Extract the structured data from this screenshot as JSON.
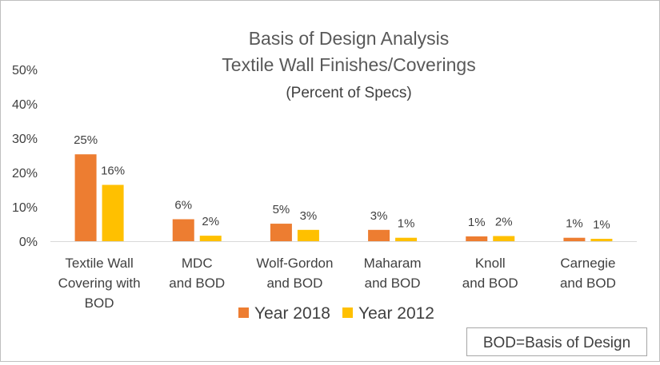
{
  "chart_data": {
    "type": "bar",
    "title": [
      "Basis of Design Analysis",
      "Textile Wall Finishes/Coverings"
    ],
    "subtitle": "(Percent of Specs)",
    "categories": [
      [
        "Textile Wall",
        "Covering with",
        "BOD"
      ],
      [
        "MDC",
        "and BOD"
      ],
      [
        "Wolf-Gordon",
        "and BOD"
      ],
      [
        "Maharam",
        "and BOD"
      ],
      [
        "Knoll",
        "and BOD"
      ],
      [
        "Carnegie",
        "and BOD"
      ]
    ],
    "series": [
      {
        "name": "Year 2018",
        "color": "#ED7D31",
        "values": [
          25,
          6,
          5,
          3,
          1,
          1
        ],
        "labels": [
          "25%",
          "6%",
          "5%",
          "3%",
          "1%",
          "1%"
        ]
      },
      {
        "name": "Year 2012",
        "color": "#FFC000",
        "values": [
          16,
          2,
          3,
          1,
          2,
          1
        ],
        "labels": [
          "16%",
          "2%",
          "3%",
          "1%",
          "2%",
          "1%"
        ]
      }
    ],
    "bar_values_precise": [
      [
        25.3,
        6.4,
        5.1,
        3.3,
        1.4,
        1.0
      ],
      [
        16.4,
        1.6,
        3.3,
        1.0,
        1.5,
        0.7
      ]
    ],
    "yticks": [
      0,
      10,
      20,
      30,
      40,
      50
    ],
    "ytick_labels": [
      "0%",
      "10%",
      "20%",
      "30%",
      "40%",
      "50%"
    ],
    "ylim": [
      0,
      50
    ],
    "xlabel": "",
    "ylabel": "",
    "grid": false,
    "legend": "bottom",
    "annotation": "BOD=Basis of Design"
  }
}
